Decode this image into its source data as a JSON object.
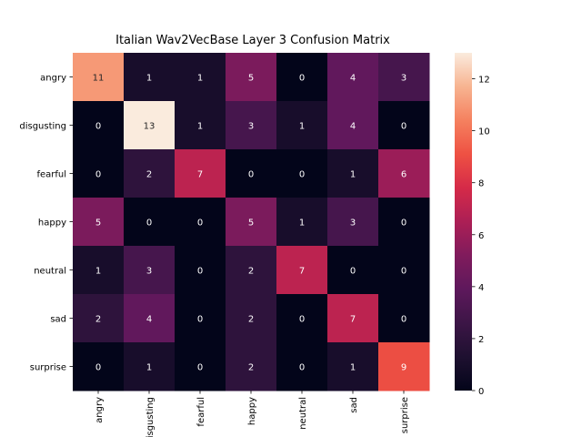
{
  "chart_data": {
    "type": "heatmap",
    "title": "Italian Wav2VecBase Layer 3 Confusion Matrix",
    "rows": [
      "angry",
      "disgusting",
      "fearful",
      "happy",
      "neutral",
      "sad",
      "surprise"
    ],
    "columns": [
      "angry",
      "disgusting",
      "fearful",
      "happy",
      "neutral",
      "sad",
      "surprise"
    ],
    "values": [
      [
        11,
        1,
        1,
        5,
        0,
        4,
        3
      ],
      [
        0,
        13,
        1,
        3,
        1,
        4,
        0
      ],
      [
        0,
        2,
        7,
        0,
        0,
        1,
        6
      ],
      [
        5,
        0,
        0,
        5,
        1,
        3,
        0
      ],
      [
        1,
        3,
        0,
        2,
        7,
        0,
        0
      ],
      [
        2,
        4,
        0,
        2,
        0,
        7,
        0
      ],
      [
        0,
        1,
        0,
        2,
        0,
        1,
        9
      ]
    ],
    "colorbar": {
      "min": 0,
      "max": 13,
      "ticks": [
        0,
        2,
        4,
        6,
        8,
        10,
        12
      ]
    },
    "colormap": "rocket"
  }
}
